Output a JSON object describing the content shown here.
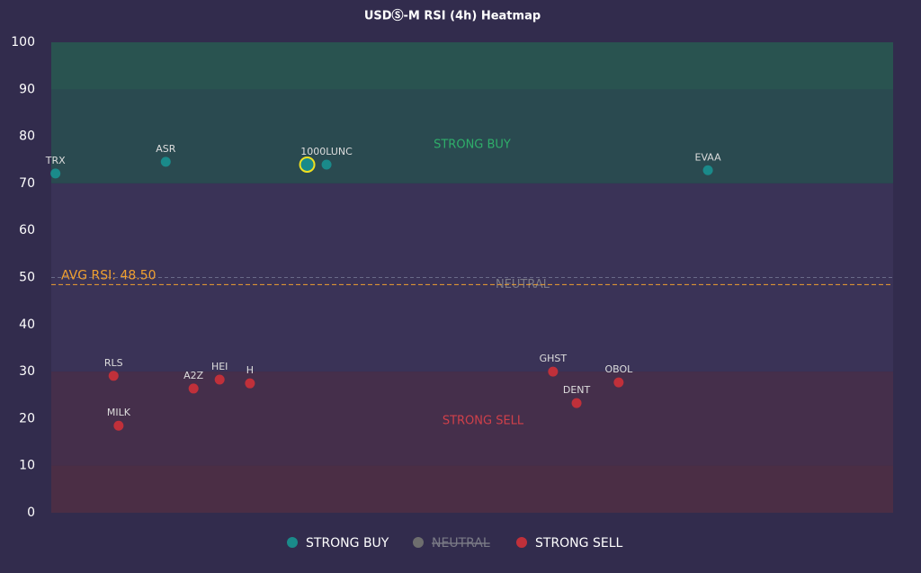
{
  "chart_data": {
    "type": "scatter",
    "title": "USDⓈ-M RSI (4h) Heatmap",
    "xlim": [
      0,
      100
    ],
    "ylim": [
      0,
      100
    ],
    "yticks": [
      0,
      10,
      20,
      30,
      40,
      50,
      60,
      70,
      80,
      90,
      100
    ],
    "zones": [
      {
        "label": "STRONG BUY",
        "range": [
          70,
          100
        ],
        "color": "#2a4a50",
        "label_color": "#2fae6a"
      },
      {
        "label": "NEUTRAL",
        "range": [
          30,
          70
        ],
        "line": 50,
        "color": "#3a3357",
        "label_color": "#7a7a86"
      },
      {
        "label": "STRONG SELL",
        "range": [
          0,
          30
        ],
        "color": "#452f4b",
        "label_color": "#d0404a"
      }
    ],
    "extreme_zones": [
      {
        "range": [
          90,
          100
        ],
        "color": "#295350"
      },
      {
        "range": [
          0,
          10
        ],
        "color": "#4b2e45"
      }
    ],
    "avg_line": {
      "value": 48.5,
      "label": "AVG RSI: 48.50",
      "color": "#f0a030"
    },
    "series": [
      {
        "name": "STRONG BUY",
        "color": "#1a8a8a",
        "labels": [
          "TRX",
          "ASR",
          null,
          "1000LUNC",
          "EVAA"
        ],
        "x": [
          0.5,
          13.6,
          30.4,
          32.7,
          78.0
        ],
        "values": [
          72.1,
          74.6,
          74.0,
          74.0,
          72.8
        ],
        "highlight": 2
      },
      {
        "name": "NEUTRAL",
        "color": "#6e6e6e",
        "hidden": true,
        "labels": [],
        "x": [],
        "values": []
      },
      {
        "name": "STRONG SELL",
        "color": "#c0303a",
        "labels": [
          "RLS",
          "MILK",
          "A2Z",
          "HEI",
          "H",
          "GHST",
          "DENT",
          "OBOL"
        ],
        "x": [
          7.4,
          8.0,
          16.9,
          20.0,
          23.6,
          59.6,
          62.4,
          67.4
        ],
        "values": [
          29.1,
          18.5,
          26.4,
          28.3,
          27.5,
          30.0,
          23.3,
          27.7
        ]
      }
    ]
  }
}
